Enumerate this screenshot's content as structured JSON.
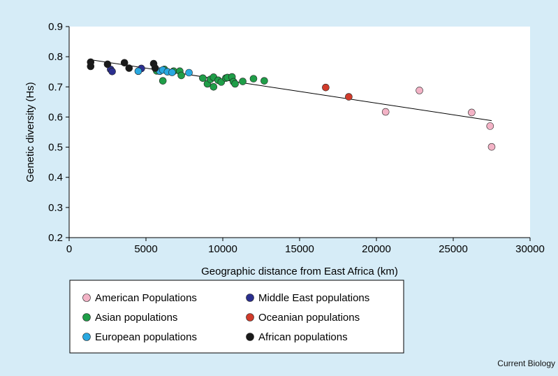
{
  "credit": "Current Biology",
  "chart_data": {
    "type": "scatter",
    "title": "",
    "xlabel": "Geographic distance from East Africa (km)",
    "ylabel": "Genetic diversity (Hs)",
    "xlim": [
      0,
      30000
    ],
    "ylim": [
      0.2,
      0.9
    ],
    "xticks": [
      0,
      5000,
      10000,
      15000,
      20000,
      25000,
      30000
    ],
    "yticks": [
      0.2,
      0.3,
      0.4,
      0.5,
      0.6,
      0.7,
      0.8,
      0.9
    ],
    "grid": false,
    "legend_position": "bottom-left",
    "trendline": {
      "type": "linear",
      "x": [
        1400,
        27500
      ],
      "y": [
        0.79,
        0.588
      ]
    },
    "series": [
      {
        "name": "American Populations",
        "color": "#f3b3c6",
        "x": [
          20600,
          22800,
          26200,
          27400,
          27500
        ],
        "y": [
          0.617,
          0.688,
          0.615,
          0.57,
          0.501
        ]
      },
      {
        "name": "Middle East populations",
        "color": "#2b2f8f",
        "x": [
          2700,
          2800,
          4700
        ],
        "y": [
          0.758,
          0.751,
          0.761
        ]
      },
      {
        "name": "Asian populations",
        "color": "#1f9e48",
        "x": [
          5700,
          6100,
          6200,
          6800,
          7200,
          7300,
          8700,
          9000,
          9200,
          9400,
          9400,
          9700,
          9900,
          10200,
          10300,
          10600,
          10700,
          10800,
          11300,
          12000,
          12700
        ],
        "y": [
          0.753,
          0.72,
          0.758,
          0.752,
          0.752,
          0.738,
          0.729,
          0.71,
          0.725,
          0.732,
          0.7,
          0.722,
          0.716,
          0.729,
          0.731,
          0.733,
          0.717,
          0.71,
          0.718,
          0.727,
          0.72
        ]
      },
      {
        "name": "Oceanian populations",
        "color": "#d13b2b",
        "x": [
          16700,
          18200
        ],
        "y": [
          0.698,
          0.667
        ]
      },
      {
        "name": "European populations",
        "color": "#29a8e0",
        "x": [
          4500,
          5900,
          6100,
          6400,
          6700,
          7800
        ],
        "y": [
          0.752,
          0.752,
          0.756,
          0.75,
          0.748,
          0.747
        ]
      },
      {
        "name": "African populations",
        "color": "#1a1a1a",
        "x": [
          1400,
          1400,
          2500,
          3600,
          3900,
          5500,
          5600
        ],
        "y": [
          0.782,
          0.768,
          0.775,
          0.78,
          0.762,
          0.777,
          0.762
        ]
      }
    ]
  }
}
